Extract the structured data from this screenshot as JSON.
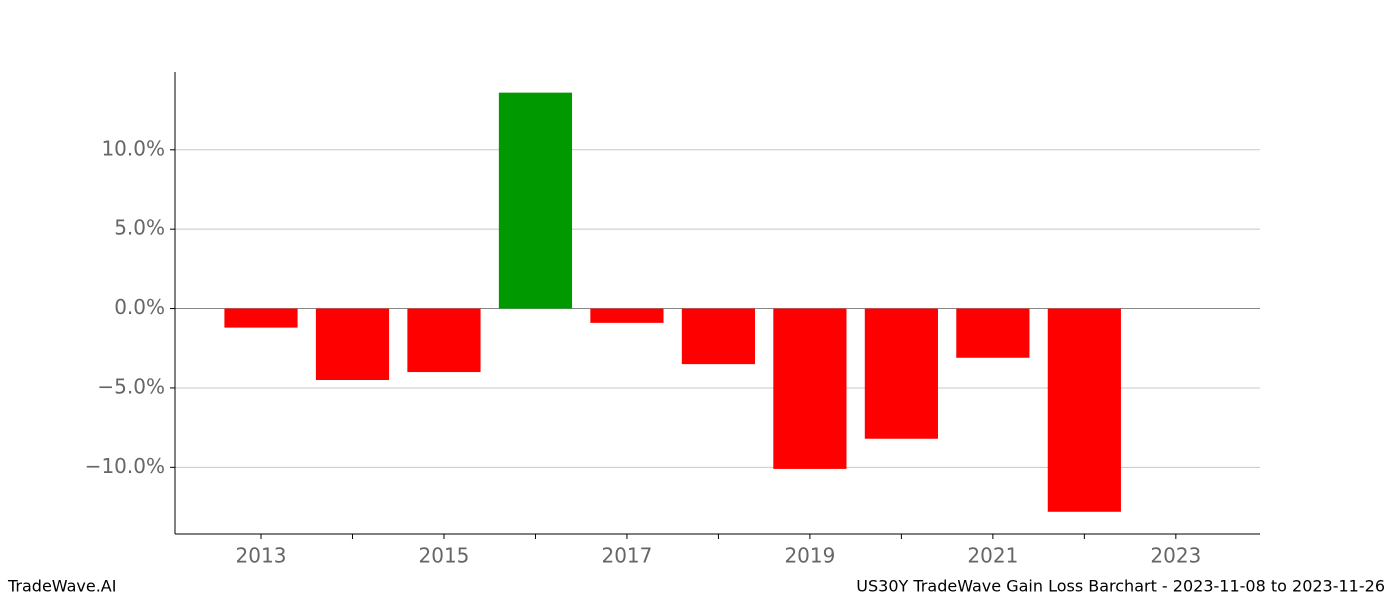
{
  "chart_data": {
    "type": "bar",
    "footer_left": "TradeWave.AI",
    "title": "US30Y TradeWave Gain Loss Barchart - 2023-11-08 to 2023-11-26",
    "x": [
      2013,
      2014,
      2015,
      2016,
      2017,
      2018,
      2019,
      2020,
      2021,
      2022
    ],
    "values": [
      -1.2,
      -4.5,
      -4.0,
      13.6,
      -0.9,
      -3.5,
      -10.1,
      -8.2,
      -3.1,
      -12.8
    ],
    "positive_color": "#009900",
    "negative_color": "#ff0000",
    "xlim": [
      2012.06,
      2023.92
    ],
    "xticks": [
      2013,
      2015,
      2017,
      2019,
      2021,
      2023
    ],
    "xminorticks": [
      2014,
      2016,
      2018,
      2020,
      2022
    ],
    "ylim": [
      -14.2,
      14.9
    ],
    "yticks": [
      {
        "value": -10,
        "label": "−10.0%"
      },
      {
        "value": -5,
        "label": "−5.0%"
      },
      {
        "value": 0,
        "label": "0.0%"
      },
      {
        "value": 5,
        "label": "5.0%"
      },
      {
        "value": 10,
        "label": "10.0%"
      }
    ],
    "grid": true
  }
}
